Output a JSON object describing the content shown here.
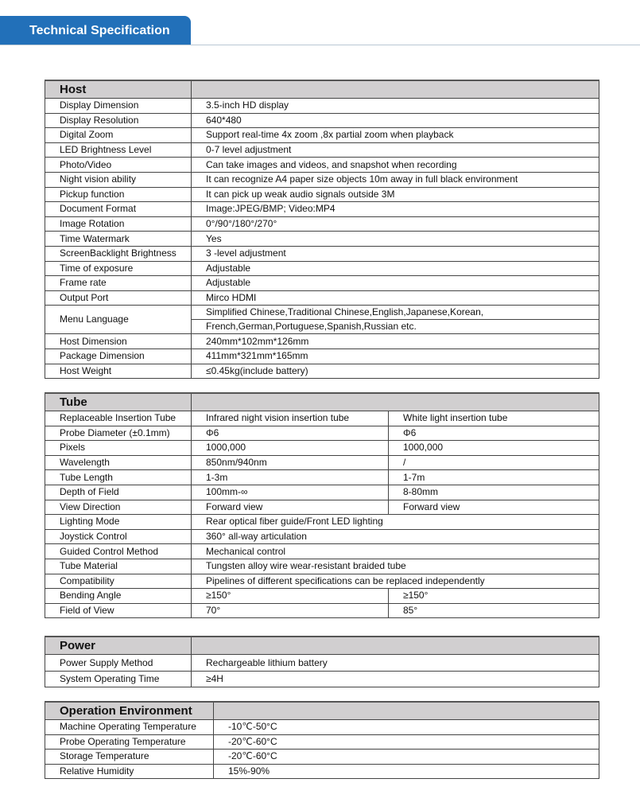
{
  "title": "Technical Specification",
  "sections": [
    {
      "name": "Host",
      "rows": [
        [
          "Display Dimension",
          "3.5-inch HD display"
        ],
        [
          "Display Resolution",
          "640*480"
        ],
        [
          "Digital Zoom",
          "Support real-time 4x zoom ,8x partial zoom when playback"
        ],
        [
          "LED Brightness Level",
          "0-7 level adjustment"
        ],
        [
          "Photo/Video",
          "Can take images and videos, and snapshot when recording"
        ],
        [
          "Night vision ability",
          "It can recognize A4 paper size objects 10m away in full black environment"
        ],
        [
          "Pickup function",
          "It can pick up weak audio signals outside 3M"
        ],
        [
          "Document Format",
          "Image:JPEG/BMP; Video:MP4"
        ],
        [
          "Image Rotation",
          "0°/90°/180°/270°"
        ],
        [
          "Time Watermark",
          "Yes"
        ],
        [
          "ScreenBacklight Brightness",
          "3 -level adjustment"
        ],
        [
          "Time of exposure",
          "Adjustable"
        ],
        [
          "Frame rate",
          "Adjustable"
        ],
        [
          "Output Port",
          "Mirco HDMI"
        ],
        [
          "Menu Language",
          "Simplified Chinese,Traditional Chinese,English,Japanese,Korean,",
          "French,German,Portuguese,Spanish,Russian etc."
        ],
        [
          "Host Dimension",
          "240mm*102mm*126mm"
        ],
        [
          "Package Dimension",
          "411mm*321mm*165mm"
        ],
        [
          "Host Weight",
          "≤0.45kg(include battery)"
        ]
      ]
    },
    {
      "name": "Tube",
      "rows": [
        [
          "Replaceable Insertion Tube",
          "Infrared night vision insertion tube",
          "White light insertion tube"
        ],
        [
          "Probe Diameter (±0.1mm)",
          "Φ6",
          "Φ6"
        ],
        [
          "Pixels",
          "1000,000",
          "1000,000"
        ],
        [
          "Wavelength",
          "850nm/940nm",
          "/"
        ],
        [
          "Tube Length",
          "1-3m",
          "1-7m"
        ],
        [
          "Depth of Field",
          "100mm-∞",
          "8-80mm"
        ],
        [
          "View Direction",
          "Forward view",
          "Forward view"
        ],
        [
          "Lighting Mode",
          "Rear optical fiber guide/Front LED lighting"
        ],
        [
          "Joystick Control",
          "360° all-way articulation"
        ],
        [
          "Guided Control Method",
          "Mechanical control"
        ],
        [
          "Tube Material",
          "Tungsten alloy wire wear-resistant braided tube"
        ],
        [
          "Compatibility",
          "Pipelines of different specifications can be replaced independently"
        ],
        [
          "Bending Angle",
          "≥150°",
          "≥150°"
        ],
        [
          "Field of View",
          "70°",
          "85°"
        ]
      ]
    },
    {
      "name": "Power",
      "rows": [
        [
          "Power Supply Method",
          "Rechargeable lithium battery"
        ],
        [
          "System Operating Time",
          "≥4H"
        ]
      ]
    },
    {
      "name": "Operation Environment",
      "rows": [
        [
          "Machine Operating Temperature",
          "-10℃-50°C"
        ],
        [
          "Probe Operating Temperature",
          "-20℃-60°C"
        ],
        [
          "Storage Temperature",
          "-20℃-60°C"
        ],
        [
          "Relative Humidity",
          "15%-90%"
        ]
      ]
    }
  ]
}
